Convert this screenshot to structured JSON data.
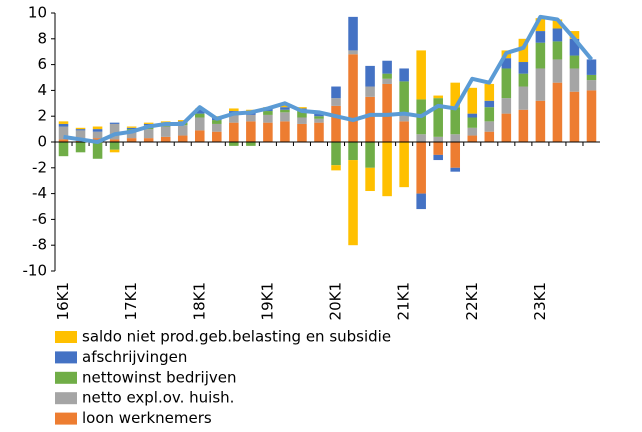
{
  "chart_data": {
    "type": "bar",
    "stacked": true,
    "categories": [
      "16K1",
      null,
      null,
      null,
      "17K1",
      null,
      null,
      null,
      "18K1",
      null,
      null,
      null,
      "19K1",
      null,
      null,
      null,
      "20K1",
      null,
      null,
      null,
      "21K1",
      null,
      null,
      null,
      "22K1",
      null,
      null,
      null,
      "23K1",
      null,
      null,
      null
    ],
    "series": [
      {
        "name": "saldo niet prod.geb.belasting en subsidie",
        "color": "#ffc000",
        "values": [
          0.2,
          0.1,
          0.2,
          -0.2,
          0.1,
          0.1,
          0.1,
          0.1,
          0.1,
          0.1,
          0.2,
          0.2,
          0.1,
          0.2,
          0.1,
          0.1,
          -0.4,
          -6.6,
          -1.8,
          -4.2,
          -3.5,
          3.8,
          0.2,
          1.9,
          2.0,
          1.3,
          0.6,
          1.8,
          1.0,
          0.7,
          0.6,
          0.0
        ]
      },
      {
        "name": "afschrijvingen",
        "color": "#4472c4",
        "values": [
          0.2,
          0.1,
          0.2,
          0.1,
          0.1,
          0.1,
          0.1,
          0.1,
          0.3,
          0.2,
          0.2,
          0.2,
          0.2,
          0.2,
          0.2,
          0.2,
          0.9,
          2.6,
          1.6,
          1.0,
          1.0,
          -1.2,
          -0.4,
          -0.3,
          0.3,
          0.5,
          0.8,
          0.9,
          0.9,
          1.0,
          1.3,
          1.2
        ]
      },
      {
        "name": "nettowinst bedrijven",
        "color": "#70ad47",
        "values": [
          -1.1,
          -0.8,
          -1.3,
          -0.6,
          0.2,
          0.3,
          0.2,
          0.2,
          0.3,
          0.3,
          -0.3,
          -0.3,
          0.3,
          0.2,
          0.5,
          0.2,
          -1.8,
          -1.4,
          -2.0,
          0.4,
          2.6,
          2.7,
          3.0,
          2.1,
          0.8,
          1.1,
          2.3,
          1.0,
          2.0,
          1.4,
          1.0,
          0.4
        ]
      },
      {
        "name": "netto expl.ov. huish.",
        "color": "#a5a5a5",
        "values": [
          1.0,
          0.8,
          0.5,
          1.2,
          0.5,
          0.7,
          0.8,
          0.8,
          1.0,
          0.6,
          0.7,
          0.5,
          0.6,
          0.7,
          0.5,
          0.3,
          0.6,
          0.3,
          0.8,
          0.4,
          0.5,
          0.6,
          0.4,
          0.6,
          0.6,
          0.8,
          1.2,
          1.8,
          2.5,
          1.8,
          1.8,
          0.8
        ]
      },
      {
        "name": "loon werknemers",
        "color": "#ed7d31",
        "values": [
          0.2,
          0.1,
          0.3,
          0.2,
          0.3,
          0.3,
          0.4,
          0.5,
          0.9,
          0.8,
          1.5,
          1.6,
          1.5,
          1.6,
          1.4,
          1.5,
          2.8,
          6.8,
          3.5,
          4.5,
          1.6,
          -4.0,
          -1.0,
          -2.0,
          0.5,
          0.8,
          2.2,
          2.5,
          3.2,
          4.6,
          3.9,
          4.0
        ]
      }
    ],
    "line": {
      "color": "#5b9bd5",
      "values": [
        0.4,
        0.2,
        0.0,
        0.6,
        0.8,
        1.2,
        1.4,
        1.4,
        2.7,
        1.8,
        2.2,
        2.3,
        2.6,
        3.0,
        2.4,
        2.3,
        2.0,
        1.7,
        2.1,
        2.1,
        2.2,
        2.0,
        2.8,
        2.6,
        4.9,
        4.6,
        6.9,
        7.3,
        9.7,
        9.5,
        8.0,
        6.4
      ]
    },
    "ylim": [
      -10,
      10
    ],
    "yticks": [
      -10,
      -8,
      -6,
      -4,
      -2,
      0,
      2,
      4,
      6,
      8,
      10
    ],
    "grid": false
  }
}
